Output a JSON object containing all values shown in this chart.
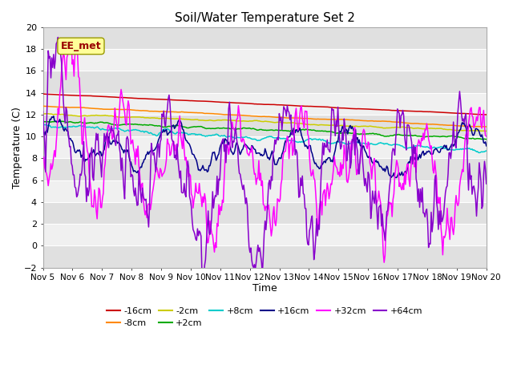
{
  "title": "Soil/Water Temperature Set 2",
  "xlabel": "Time",
  "ylabel": "Temperature (C)",
  "ylim": [
    -2,
    20
  ],
  "yticks": [
    -2,
    0,
    2,
    4,
    6,
    8,
    10,
    12,
    14,
    16,
    18,
    20
  ],
  "xlim": [
    0,
    15
  ],
  "xtick_labels": [
    "Nov 5",
    "Nov 6",
    "Nov 7",
    "Nov 8",
    "Nov 9",
    "Nov 10",
    "Nov 11",
    "Nov 12",
    "Nov 13",
    "Nov 14",
    "Nov 15",
    "Nov 16",
    "Nov 17",
    "Nov 18",
    "Nov 19",
    "Nov 20"
  ],
  "series_colors": {
    "-16cm": "#cc0000",
    "-8cm": "#ff8800",
    "-2cm": "#cccc00",
    "+2cm": "#00aa00",
    "+8cm": "#00cccc",
    "+16cm": "#000088",
    "+32cm": "#ff00ff",
    "+64cm": "#8800cc"
  },
  "watermark": "EE_met",
  "watermark_color": "#990000",
  "watermark_bg": "#ffff99",
  "watermark_border": "#999900",
  "fig_bg": "#ffffff",
  "plot_bg_light": "#f0f0f0",
  "plot_bg_dark": "#e0e0e0",
  "grid_line_color": "#ffffff",
  "figsize": [
    6.4,
    4.8
  ],
  "dpi": 100
}
